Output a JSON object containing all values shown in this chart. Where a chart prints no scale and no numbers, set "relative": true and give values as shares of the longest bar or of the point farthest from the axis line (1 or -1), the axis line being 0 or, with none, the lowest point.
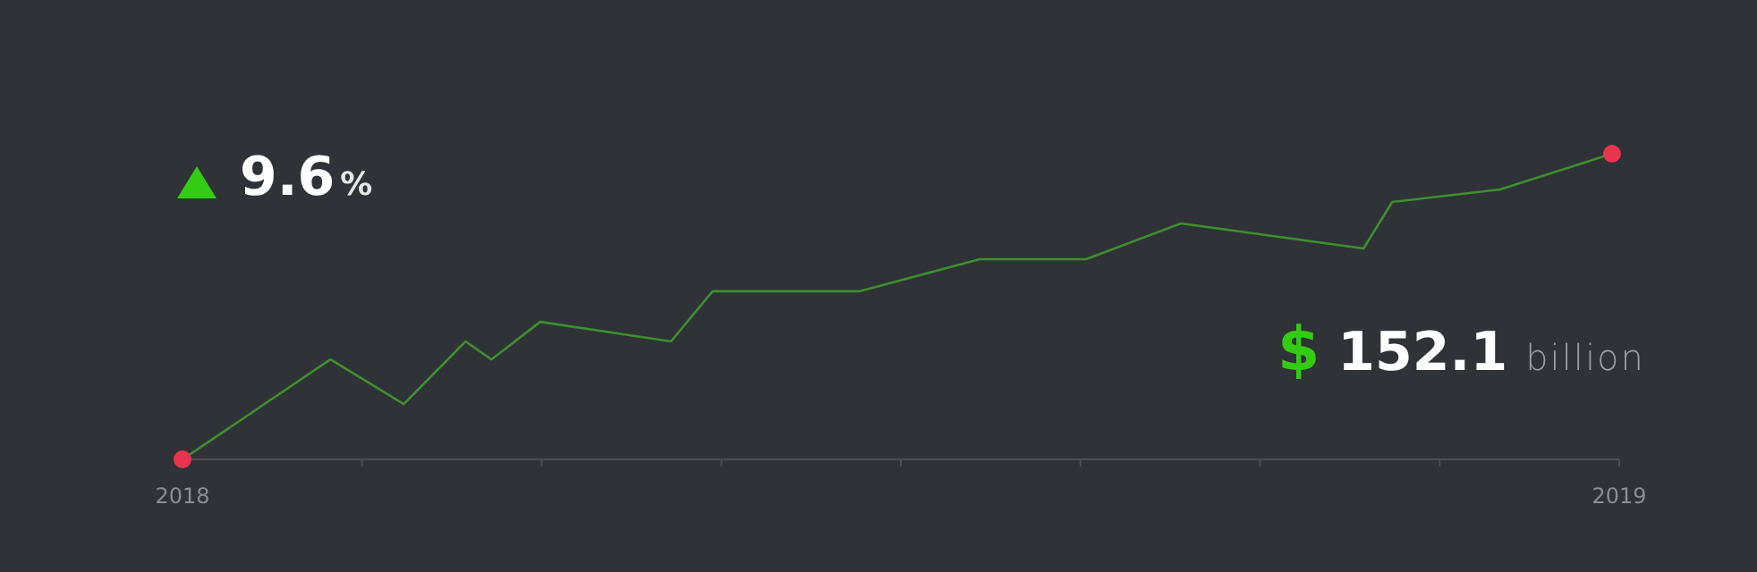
{
  "chart_data": {
    "type": "line",
    "relative": true,
    "xlim": [
      2018,
      2019
    ],
    "xticks": [
      2018,
      {
        "value": 2018.125,
        "label": null
      },
      {
        "value": 2018.25,
        "label": null
      },
      {
        "value": 2018.375,
        "label": null
      },
      {
        "value": 2018.5,
        "label": null
      },
      {
        "value": 2018.625,
        "label": null
      },
      {
        "value": 2018.75,
        "label": null
      },
      {
        "value": 2018.875,
        "label": null
      },
      2019
    ],
    "series": [
      {
        "color": "#3f8f2f",
        "marker": "none",
        "x": [
          2018,
          2018.103,
          2018.154,
          2018.197,
          2018.215,
          2018.249,
          2018.34,
          2018.369,
          2018.471,
          2018.555,
          2018.629,
          2018.695,
          2018.822,
          2018.842,
          2018.917,
          2018.995
        ],
        "values": [
          0,
          0.327,
          0.181,
          0.386,
          0.327,
          0.45,
          0.386,
          0.55,
          0.55,
          0.655,
          0.655,
          0.772,
          0.69,
          0.842,
          0.883,
          1
        ]
      },
      {
        "type": "scatter",
        "color": "#e8344f",
        "marker": "circle",
        "x": [
          2018,
          2018.995
        ],
        "values": [
          0,
          1
        ]
      }
    ],
    "annotations": [
      "9.6%",
      "$ 152.1 billion"
    ]
  }
}
